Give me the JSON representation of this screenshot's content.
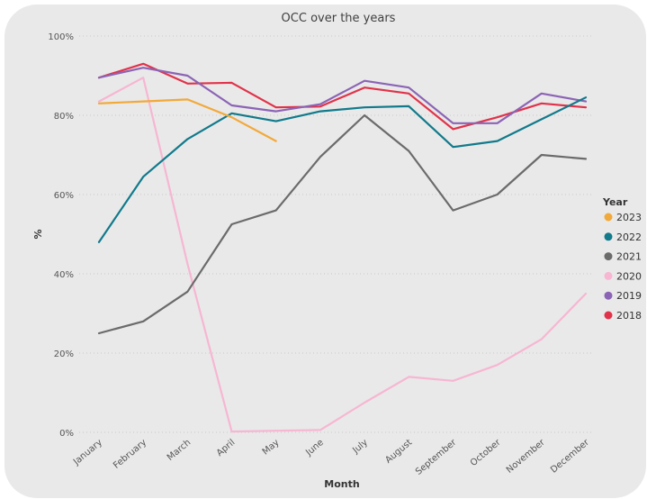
{
  "chart_data": {
    "type": "line",
    "title": "OCC over the years",
    "xlabel": "Month",
    "ylabel": "%",
    "ylim": [
      0,
      100
    ],
    "yticks": [
      0,
      20,
      40,
      60,
      80,
      100
    ],
    "ytick_labels": [
      "0%",
      "20%",
      "40%",
      "60%",
      "80%",
      "100%"
    ],
    "categories": [
      "January",
      "February",
      "March",
      "April",
      "May",
      "June",
      "July",
      "August",
      "September",
      "October",
      "November",
      "December"
    ],
    "legend_title": "Year",
    "series": [
      {
        "name": "2023",
        "color": "#F2A93B",
        "values": [
          83.0,
          83.5,
          84.0,
          79.5,
          73.5,
          null,
          null,
          null,
          null,
          null,
          null,
          null
        ]
      },
      {
        "name": "2022",
        "color": "#117A8B",
        "values": [
          48.0,
          64.5,
          74.0,
          80.5,
          78.5,
          81.0,
          82.0,
          82.3,
          72.0,
          73.5,
          79.0,
          84.5
        ]
      },
      {
        "name": "2021",
        "color": "#6B6B6B",
        "values": [
          25.0,
          28.0,
          35.5,
          52.5,
          56.0,
          69.5,
          80.0,
          71.0,
          56.0,
          60.0,
          70.0,
          69.0
        ]
      },
      {
        "name": "2020",
        "color": "#F7B6D2",
        "values": [
          83.5,
          89.5,
          42.5,
          0.2,
          0.4,
          0.6,
          7.5,
          14.0,
          13.0,
          17.0,
          23.5,
          35.0
        ]
      },
      {
        "name": "2019",
        "color": "#8B64B5",
        "values": [
          89.5,
          92.0,
          90.0,
          82.5,
          81.0,
          82.8,
          88.7,
          87.0,
          78.0,
          78.0,
          85.5,
          83.5
        ]
      },
      {
        "name": "2018",
        "color": "#E0334A",
        "values": [
          89.5,
          93.0,
          88.0,
          88.2,
          82.0,
          82.2,
          87.0,
          85.5,
          76.5,
          79.5,
          83.0,
          82.0
        ]
      }
    ]
  }
}
